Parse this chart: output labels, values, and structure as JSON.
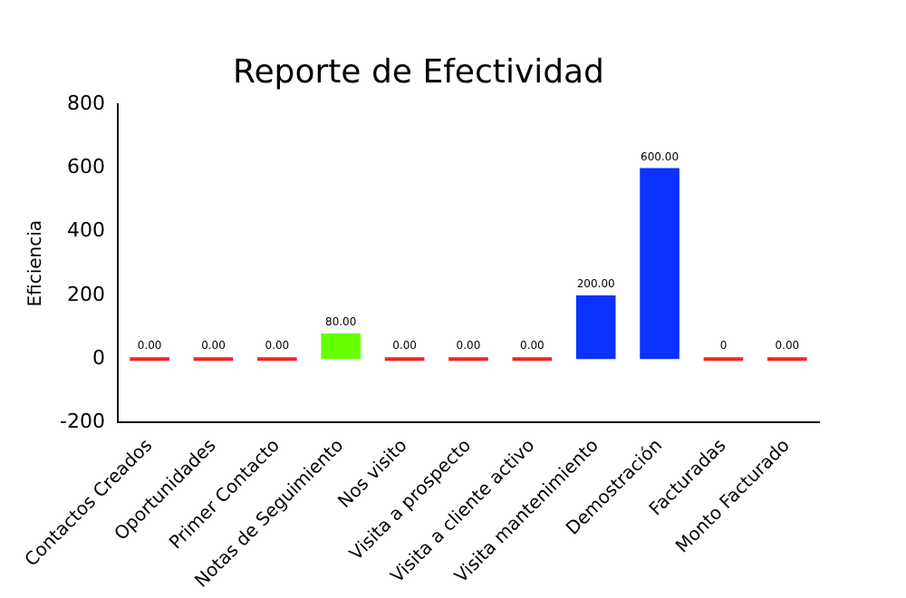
{
  "chart_data": {
    "type": "bar",
    "title": "Reporte de Efectividad",
    "ylabel": "Eficiencia",
    "categories": [
      "Contactos Creados",
      "Oportunidades",
      "Primer Contacto",
      "Notas de Seguimiento",
      "Nos visito",
      "Visita a prospecto",
      "Visita a cliente activo",
      "Visita mantenimiento",
      "Demostración",
      "Facturadas",
      "Monto Facturado"
    ],
    "values": [
      0,
      0,
      0,
      80,
      0,
      0,
      0,
      200,
      600,
      0,
      0
    ],
    "colors": [
      "#ff2020",
      "#ff2020",
      "#ff2020",
      "#66ff00",
      "#ff2020",
      "#ff2020",
      "#ff2020",
      "#0a33ff",
      "#0a33ff",
      "#ff2020",
      "#ff2020"
    ],
    "value_labels": [
      "0.00",
      "0.00",
      "0.00",
      "80.00",
      "0.00",
      "0.00",
      "0.00",
      "200.00",
      "600.00",
      "0",
      "0.00"
    ],
    "ylim": [
      -200,
      800
    ],
    "yticks": [
      -200,
      0,
      200,
      400,
      600,
      800
    ],
    "grid": false,
    "legend": false
  }
}
